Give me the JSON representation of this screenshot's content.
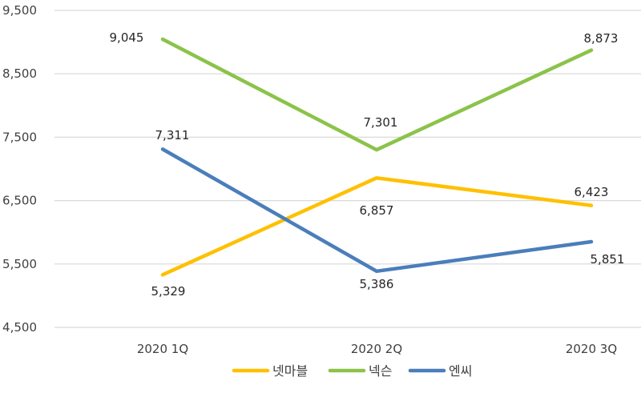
{
  "chart_data": {
    "type": "line",
    "title": "",
    "xlabel": "",
    "ylabel": "",
    "categories": [
      "2020 1Q",
      "2020 2Q",
      "2020 3Q"
    ],
    "series": [
      {
        "name": "넷마블",
        "color": "#FFC000",
        "values": [
          5329,
          6857,
          6423
        ],
        "labels": [
          "5,329",
          "6,857",
          "6,423"
        ]
      },
      {
        "name": "넥슨",
        "color": "#8BC34A",
        "values": [
          9045,
          7301,
          8873
        ],
        "labels": [
          "9,045",
          "7,301",
          "8,873"
        ]
      },
      {
        "name": "엔씨",
        "color": "#4A7EBB",
        "values": [
          7311,
          5386,
          5851
        ],
        "labels": [
          "7,311",
          "5,386",
          "5,851"
        ]
      }
    ],
    "ylim": [
      4500,
      9500
    ],
    "yticks": [
      9500,
      8500,
      7500,
      6500,
      5500,
      4500
    ],
    "ytick_labels": [
      "9,500",
      "8,500",
      "7,500",
      "6,500",
      "5,500",
      "4,500"
    ],
    "grid": true,
    "legend_position": "bottom"
  }
}
